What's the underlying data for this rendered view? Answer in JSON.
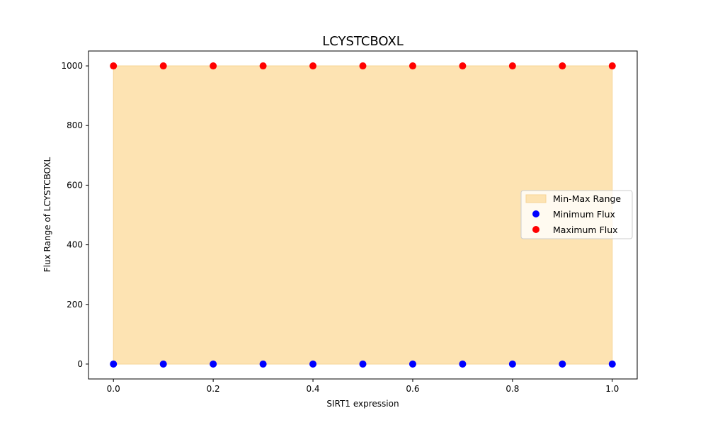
{
  "chart_data": {
    "type": "scatter",
    "title": "LCYSTCBOXL",
    "xlabel": "SIRT1 expression",
    "ylabel": "Flux Range of LCYSTCBOXL",
    "xlim": [
      -0.05,
      1.05
    ],
    "ylim": [
      -50,
      1050
    ],
    "xticks": [
      0.0,
      0.2,
      0.4,
      0.6,
      0.8,
      1.0
    ],
    "xtick_labels": [
      "0.0",
      "0.2",
      "0.4",
      "0.6",
      "0.8",
      "1.0"
    ],
    "yticks": [
      0,
      200,
      400,
      600,
      800,
      1000
    ],
    "ytick_labels": [
      "0",
      "200",
      "400",
      "600",
      "800",
      "1000"
    ],
    "grid": false,
    "legend_position": "center-right",
    "x": [
      0.0,
      0.1,
      0.2,
      0.3,
      0.4,
      0.5,
      0.6,
      0.7,
      0.8,
      0.9,
      1.0
    ],
    "fill": {
      "name": "Min-Max Range",
      "color": "#fde3b2",
      "edge_color": "#f7d496"
    },
    "series": [
      {
        "name": "Minimum Flux",
        "color": "#0000ff",
        "values": [
          0,
          0,
          0,
          0,
          0,
          0,
          0,
          0,
          0,
          0,
          0
        ]
      },
      {
        "name": "Maximum Flux",
        "color": "#ff0000",
        "values": [
          1000,
          1000,
          1000,
          1000,
          1000,
          1000,
          1000,
          1000,
          1000,
          1000,
          1000
        ]
      }
    ]
  }
}
